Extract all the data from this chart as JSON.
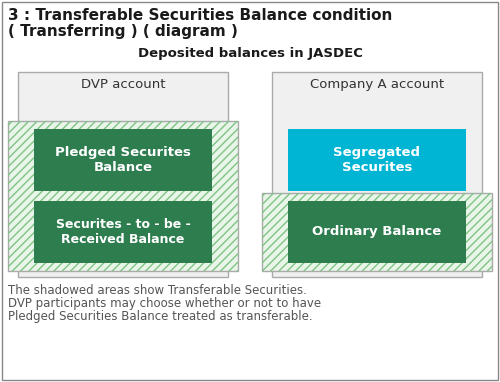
{
  "title_line1": "3 : Transferable Securities Balance condition",
  "title_line2": "( Transferring ) ( diagram )",
  "subtitle": "Deposited balances in JASDEC",
  "dvp_label": "DVP account",
  "company_label": "Company A account",
  "box1_label": "Pledged Securites\nBalance",
  "box2_label": "Securites - to - be -\nReceived Balance",
  "box3_label": "Segregated\nSecurites",
  "box4_label": "Ordinary Balance",
  "footer_line1": "The shadowed areas show Transferable Securities.",
  "footer_line2": "DVP participants may choose whether or not to have",
  "footer_line3": "Pledged Securities Balance treated as transferable.",
  "title_color": "#1a1a1a",
  "subtitle_color": "#1a1a1a",
  "green_dark": "#2e7d4f",
  "cyan_blue": "#00b4d4",
  "hatch_fg": "#7dc484",
  "hatch_bg": "#eaf5ea",
  "outer_box_bg": "#f0f0f0",
  "outer_box_border": "#aaaaaa",
  "footer_color": "#555555",
  "white": "#ffffff",
  "border_color": "#888888"
}
